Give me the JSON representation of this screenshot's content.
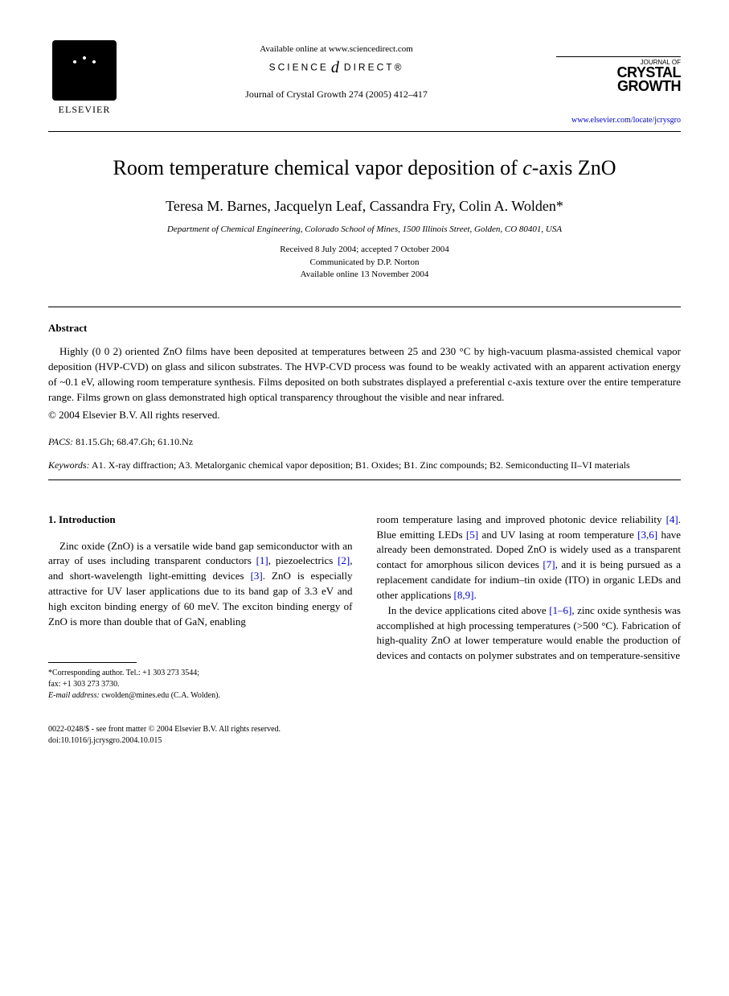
{
  "header": {
    "publisher": "ELSEVIER",
    "available_online": "Available online at www.sciencedirect.com",
    "science_direct_left": "SCIENCE",
    "science_direct_right": "DIRECT®",
    "journal_ref": "Journal of Crystal Growth 274 (2005) 412–417",
    "journal_small": "JOURNAL OF",
    "journal_name_1": "CRYSTAL",
    "journal_name_2": "GROWTH",
    "journal_url": "www.elsevier.com/locate/jcrysgro"
  },
  "title_pre": "Room temperature chemical vapor deposition of ",
  "title_italic": "c",
  "title_post": "-axis ZnO",
  "authors": "Teresa M. Barnes, Jacquelyn Leaf, Cassandra Fry, Colin A. Wolden*",
  "affiliation": "Department of Chemical Engineering, Colorado School of Mines, 1500 Illinois Street, Golden, CO 80401, USA",
  "dates": {
    "received": "Received 8 July 2004; accepted 7 October 2004",
    "communicated": "Communicated by D.P. Norton",
    "online": "Available online 13 November 2004"
  },
  "abstract_label": "Abstract",
  "abstract_text": "Highly (0 0 2) oriented ZnO films have been deposited at temperatures between 25 and 230 °C by high-vacuum plasma-assisted chemical vapor deposition (HVP-CVD) on glass and silicon substrates. The HVP-CVD process was found to be weakly activated with an apparent activation energy of ~0.1 eV, allowing room temperature synthesis. Films deposited on both substrates displayed a preferential c-axis texture over the entire temperature range. Films grown on glass demonstrated high optical transparency throughout the visible and near infrared.",
  "copyright": "© 2004 Elsevier B.V. All rights reserved.",
  "pacs_label": "PACS:",
  "pacs_codes": " 81.15.Gh; 68.47.Gh; 61.10.Nz",
  "keywords_label": "Keywords:",
  "keywords_text": " A1. X-ray diffraction; A3. Metalorganic chemical vapor deposition; B1. Oxides; B1. Zinc compounds; B2. Semiconducting II–VI materials",
  "intro_heading": "1. Introduction",
  "intro_p1_a": "Zinc oxide (ZnO) is a versatile wide band gap semiconductor with an array of uses including transparent conductors ",
  "intro_p1_c1": "[1]",
  "intro_p1_b": ", piezoelectrics ",
  "intro_p1_c2": "[2]",
  "intro_p1_c": ", and short-wavelength light-emitting devices ",
  "intro_p1_c3": "[3]",
  "intro_p1_d": ". ZnO is especially attractive for UV laser applications due to its band gap of 3.3 eV and high exciton binding energy of 60 meV. The exciton binding energy of ZnO is more than double that of GaN, enabling",
  "col2_p1_a": "room temperature lasing and improved photonic device reliability ",
  "col2_p1_c1": "[4]",
  "col2_p1_b": ". Blue emitting LEDs ",
  "col2_p1_c2": "[5]",
  "col2_p1_c": " and UV lasing at room temperature ",
  "col2_p1_c3": "[3,6]",
  "col2_p1_d": " have already been demonstrated. Doped ZnO is widely used as a transparent contact for amorphous silicon devices ",
  "col2_p1_c4": "[7]",
  "col2_p1_e": ", and it is being pursued as a replacement candidate for indium–tin oxide (ITO) in organic LEDs and other applications ",
  "col2_p1_c5": "[8,9]",
  "col2_p1_f": ".",
  "col2_p2_a": "In the device applications cited above ",
  "col2_p2_c1": "[1–6]",
  "col2_p2_b": ", zinc oxide synthesis was accomplished at high processing temperatures (>500 °C). Fabrication of high-quality ZnO at lower temperature would enable the production of devices and contacts on polymer substrates and on temperature-sensitive",
  "footnote": {
    "corr": "*Corresponding author. Tel.: +1 303 273 3544;",
    "fax": "fax: +1 303 273 3730.",
    "email_label": "E-mail address:",
    "email": " cwolden@mines.edu (C.A. Wolden)."
  },
  "footer": {
    "line1": "0022-0248/$ - see front matter © 2004 Elsevier B.V. All rights reserved.",
    "line2": "doi:10.1016/j.jcrysgro.2004.10.015"
  }
}
